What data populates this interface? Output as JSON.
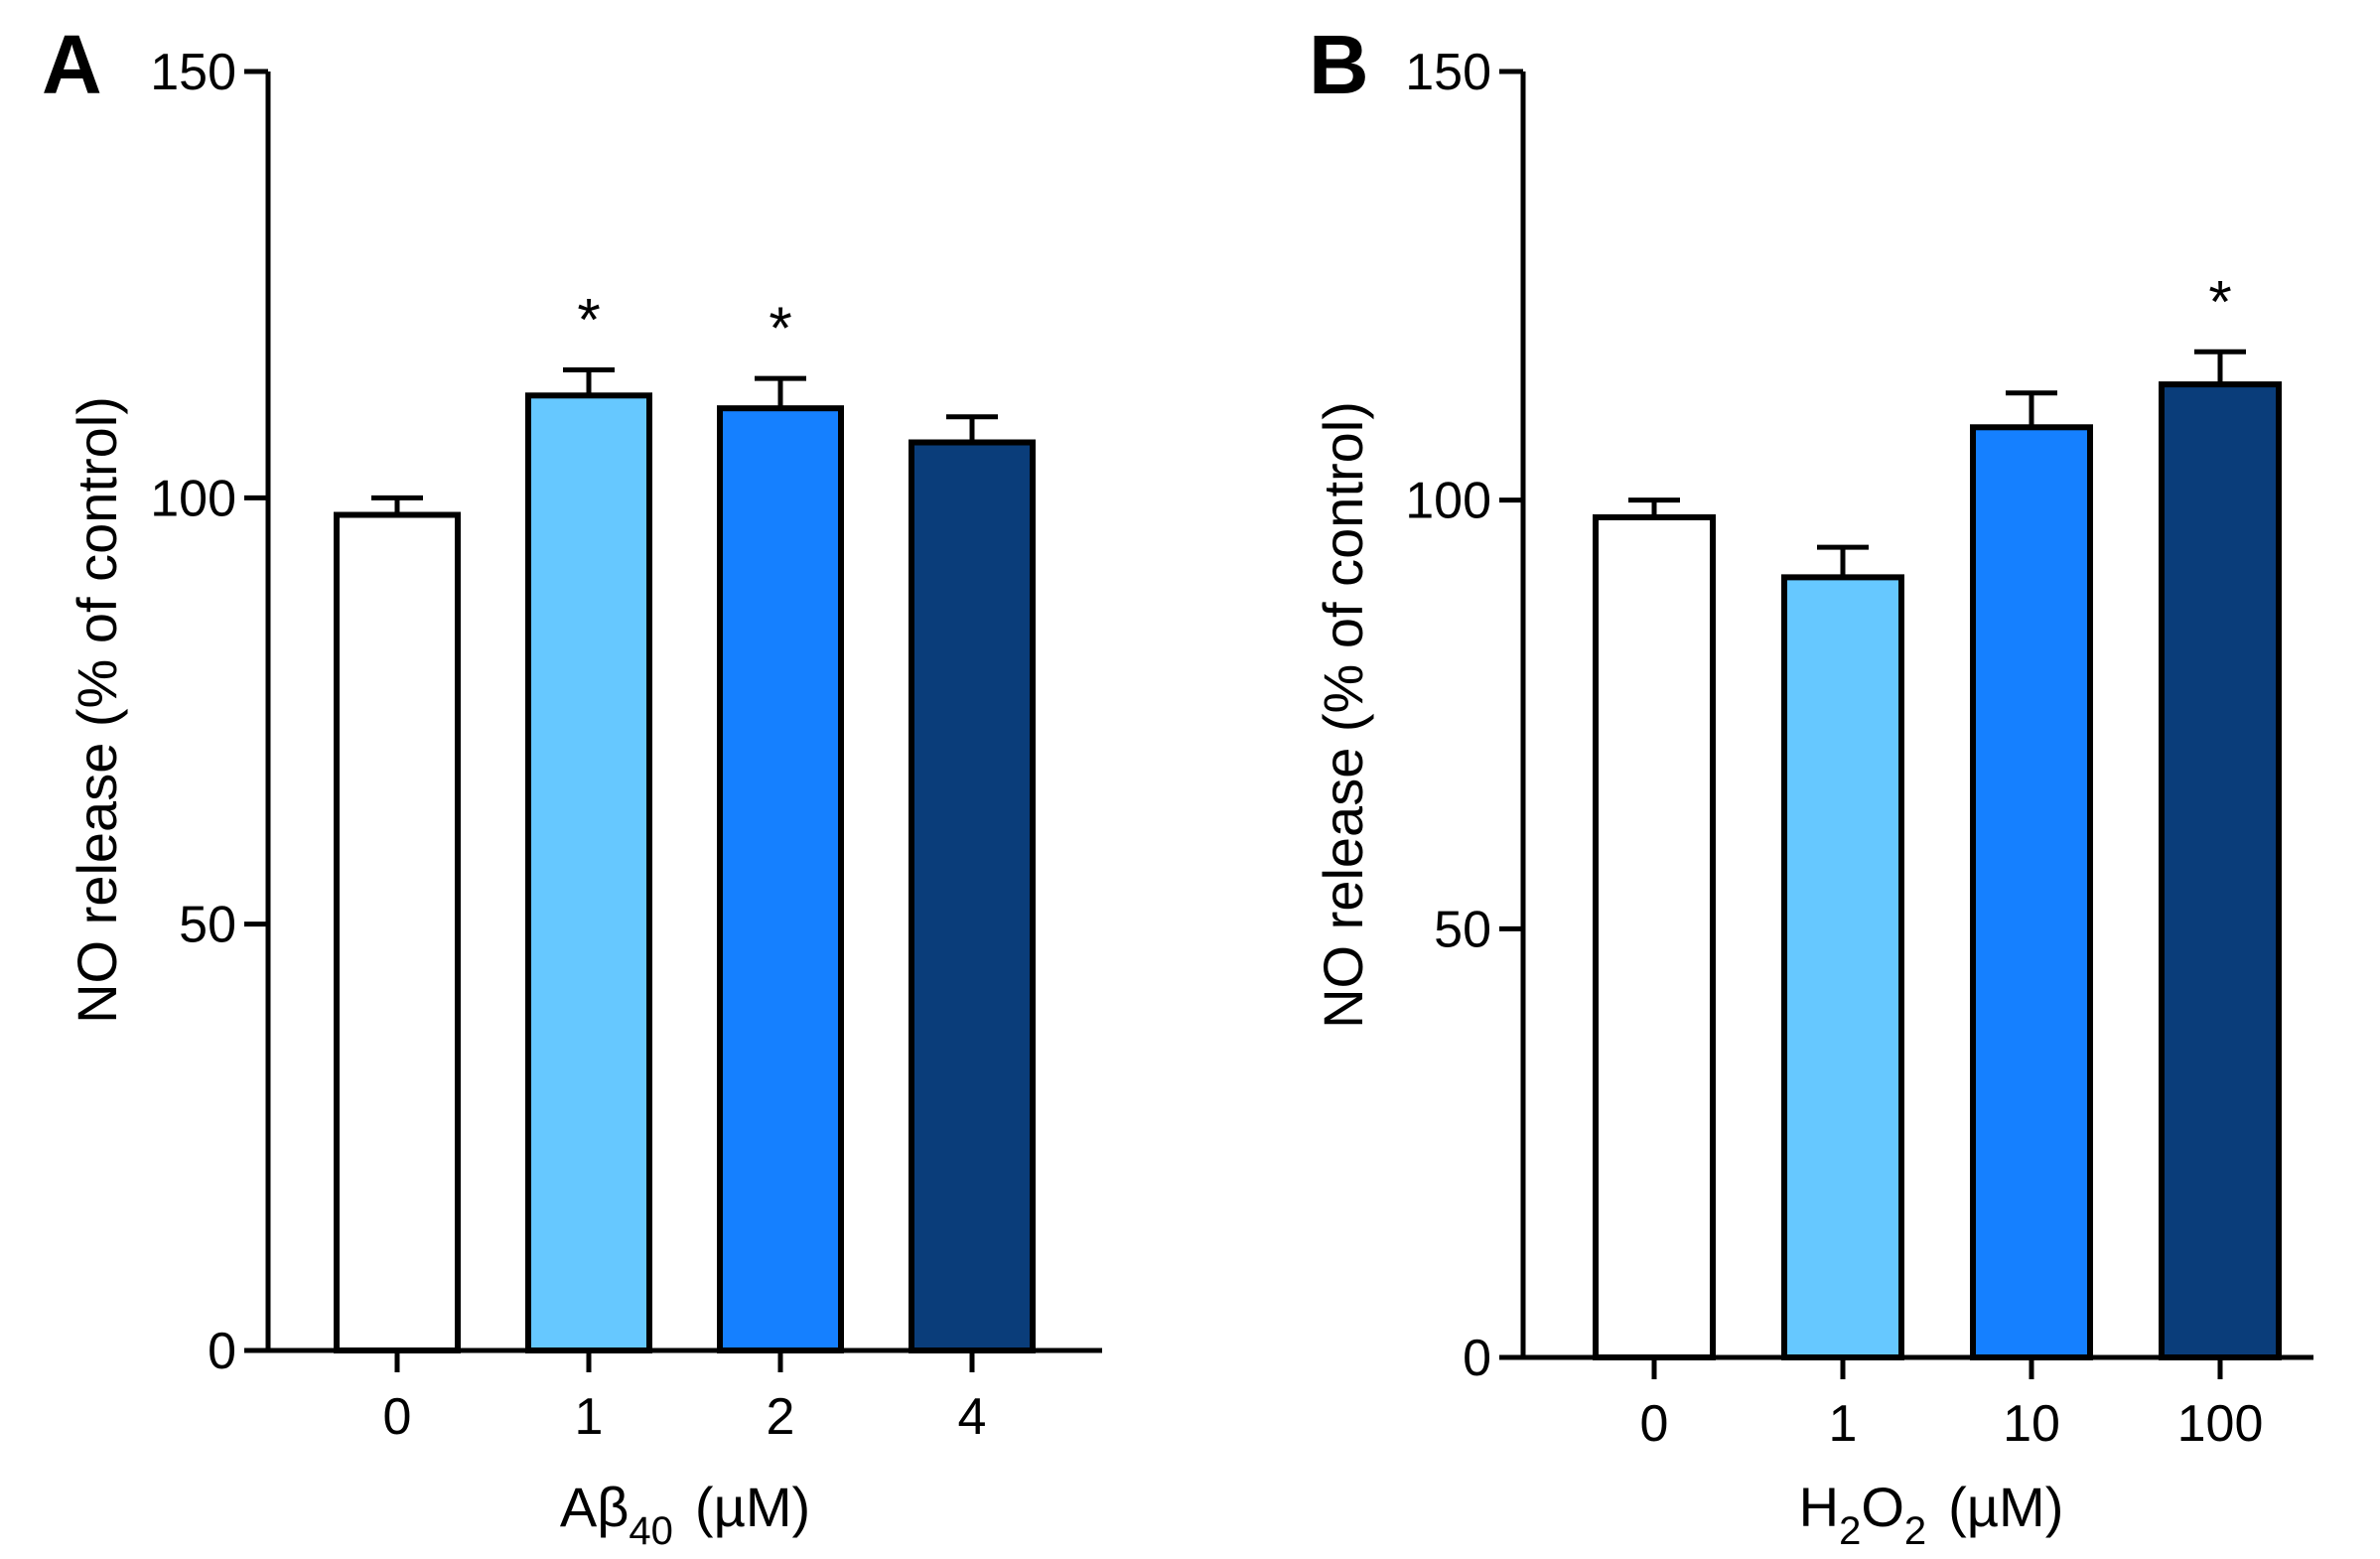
{
  "chart_data": [
    {
      "type": "bar",
      "panel_label": "A",
      "categories": [
        "0",
        "1",
        "2",
        "4"
      ],
      "values": [
        98,
        112,
        110.5,
        106.5
      ],
      "errors": [
        2,
        3,
        3.5,
        3
      ],
      "significance": [
        "",
        "*",
        "*",
        ""
      ],
      "colors": [
        "#ffffff",
        "#66c8ff",
        "#1580ff",
        "#0a3d7a"
      ],
      "ylim": [
        0,
        150
      ],
      "yticks": [
        "0",
        "50",
        "100",
        "150"
      ],
      "ylabel": "NO release (% of control)",
      "xlabel": {
        "main": "Aβ",
        "sub": "40",
        "unit": "(µM)"
      },
      "title": "",
      "grid": false
    },
    {
      "type": "bar",
      "panel_label": "B",
      "categories": [
        "0",
        "1",
        "10",
        "100"
      ],
      "values": [
        98,
        91,
        108.5,
        113.5
      ],
      "errors": [
        2,
        3.5,
        4,
        3.8
      ],
      "significance": [
        "",
        "",
        "",
        "*"
      ],
      "colors": [
        "#ffffff",
        "#66c8ff",
        "#1580ff",
        "#0a3d7a"
      ],
      "ylim": [
        0,
        150
      ],
      "yticks": [
        "0",
        "50",
        "100",
        "150"
      ],
      "ylabel": "NO release (% of control)",
      "xlabel": {
        "main": "H",
        "sub1": "2",
        "mid": "O",
        "sub2": "2",
        "unit": "(µM)"
      },
      "title": "",
      "grid": false
    }
  ]
}
